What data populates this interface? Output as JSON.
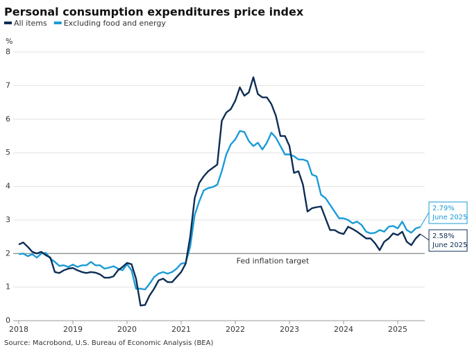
{
  "chart_data": {
    "type": "line",
    "title": "Personal consumption expenditures price index",
    "y_label": "%",
    "source": "Source: Macrobond, U.S. Bureau of Economic Analysis (BEA)",
    "target": 2,
    "target_label": "Fed inflation target",
    "x": [
      2018,
      2018.083,
      2018.167,
      2018.25,
      2018.333,
      2018.417,
      2018.5,
      2018.583,
      2018.667,
      2018.75,
      2018.833,
      2018.917,
      2019,
      2019.083,
      2019.167,
      2019.25,
      2019.333,
      2019.417,
      2019.5,
      2019.583,
      2019.667,
      2019.75,
      2019.833,
      2019.917,
      2020,
      2020.083,
      2020.167,
      2020.25,
      2020.333,
      2020.417,
      2020.5,
      2020.583,
      2020.667,
      2020.75,
      2020.833,
      2020.917,
      2021,
      2021.083,
      2021.167,
      2021.25,
      2021.333,
      2021.417,
      2021.5,
      2021.583,
      2021.667,
      2021.75,
      2021.833,
      2021.917,
      2022,
      2022.083,
      2022.167,
      2022.25,
      2022.333,
      2022.417,
      2022.5,
      2022.583,
      2022.667,
      2022.75,
      2022.833,
      2022.917,
      2023,
      2023.083,
      2023.167,
      2023.25,
      2023.333,
      2023.417,
      2023.5,
      2023.583,
      2023.667,
      2023.75,
      2023.833,
      2023.917,
      2024,
      2024.083,
      2024.167,
      2024.25,
      2024.333,
      2024.417,
      2024.5,
      2024.583,
      2024.667,
      2024.75,
      2024.833,
      2024.917,
      2025,
      2025.083,
      2025.167,
      2025.25,
      2025.333,
      2025.417
    ],
    "series": [
      {
        "name": "All items",
        "color": "#0d2c54",
        "last_label": "2.58%",
        "last_date": "June 2025",
        "values": [
          2.27,
          2.33,
          2.2,
          2.05,
          2.0,
          2.05,
          1.95,
          1.88,
          1.45,
          1.42,
          1.5,
          1.55,
          1.57,
          1.5,
          1.45,
          1.42,
          1.45,
          1.43,
          1.38,
          1.28,
          1.28,
          1.32,
          1.5,
          1.6,
          1.72,
          1.68,
          1.25,
          0.45,
          0.47,
          0.75,
          0.95,
          1.2,
          1.25,
          1.15,
          1.15,
          1.3,
          1.45,
          1.7,
          2.5,
          3.65,
          4.1,
          4.3,
          4.45,
          4.55,
          4.65,
          5.95,
          6.2,
          6.3,
          6.55,
          6.95,
          6.7,
          6.8,
          7.25,
          6.75,
          6.65,
          6.65,
          6.45,
          6.1,
          5.5,
          5.5,
          5.2,
          4.4,
          4.45,
          4.05,
          3.25,
          3.35,
          3.38,
          3.4,
          3.05,
          2.7,
          2.7,
          2.62,
          2.58,
          2.8,
          2.73,
          2.65,
          2.55,
          2.45,
          2.45,
          2.3,
          2.1,
          2.35,
          2.45,
          2.6,
          2.55,
          2.65,
          2.35,
          2.25,
          2.45,
          2.58
        ]
      },
      {
        "name": "Excluding food and energy",
        "color": "#1a9bd7",
        "last_label": "2.79%",
        "last_date": "June 2025",
        "values": [
          1.98,
          2.0,
          1.92,
          1.98,
          1.88,
          2.0,
          2.02,
          1.85,
          1.75,
          1.63,
          1.65,
          1.6,
          1.67,
          1.6,
          1.65,
          1.65,
          1.75,
          1.65,
          1.65,
          1.55,
          1.58,
          1.62,
          1.55,
          1.5,
          1.68,
          1.5,
          0.95,
          0.95,
          0.93,
          1.1,
          1.3,
          1.4,
          1.45,
          1.4,
          1.45,
          1.55,
          1.7,
          1.72,
          2.2,
          3.15,
          3.55,
          3.88,
          3.95,
          3.98,
          4.05,
          4.45,
          4.95,
          5.25,
          5.4,
          5.65,
          5.62,
          5.35,
          5.2,
          5.3,
          5.1,
          5.3,
          5.6,
          5.45,
          5.2,
          4.95,
          4.95,
          4.9,
          4.8,
          4.8,
          4.75,
          4.35,
          4.3,
          3.75,
          3.65,
          3.45,
          3.25,
          3.05,
          3.05,
          3.0,
          2.9,
          2.95,
          2.85,
          2.65,
          2.6,
          2.62,
          2.7,
          2.65,
          2.8,
          2.82,
          2.75,
          2.95,
          2.7,
          2.62,
          2.75,
          2.79
        ]
      }
    ],
    "xlim": [
      2018,
      2025.5
    ],
    "xticks": [
      2018,
      2019,
      2020,
      2021,
      2022,
      2023,
      2024,
      2025
    ],
    "ylim": [
      0,
      8
    ],
    "yticks": [
      0,
      1,
      2,
      3,
      4,
      5,
      6,
      7,
      8
    ],
    "grid": true
  }
}
